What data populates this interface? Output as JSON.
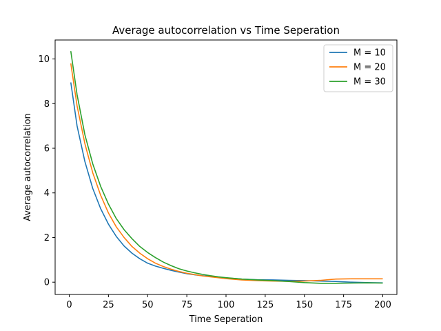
{
  "chart_data": {
    "type": "line",
    "title": "Average autocorrelation vs Time Seperation",
    "xlabel": "Time Seperation",
    "ylabel": "Average autocorrelation",
    "xlim": [
      -9,
      209
    ],
    "ylim": [
      -0.55,
      10.85
    ],
    "xticks": [
      0,
      25,
      50,
      75,
      100,
      125,
      150,
      175,
      200
    ],
    "yticks": [
      0,
      2,
      4,
      6,
      8,
      10
    ],
    "grid": false,
    "legend_position": "top-right",
    "series": [
      {
        "name": "M = 10",
        "color": "#1f77b4",
        "x": [
          1,
          5,
          10,
          15,
          20,
          25,
          30,
          35,
          40,
          45,
          50,
          55,
          60,
          65,
          70,
          75,
          80,
          85,
          90,
          95,
          100,
          110,
          120,
          130,
          140,
          150,
          160,
          170,
          180,
          190,
          200
        ],
        "y": [
          8.95,
          7.0,
          5.4,
          4.2,
          3.3,
          2.6,
          2.05,
          1.62,
          1.3,
          1.05,
          0.85,
          0.72,
          0.62,
          0.53,
          0.45,
          0.38,
          0.33,
          0.29,
          0.26,
          0.22,
          0.19,
          0.14,
          0.11,
          0.1,
          0.08,
          0.07,
          0.05,
          0.03,
          0.0,
          -0.02,
          -0.03
        ]
      },
      {
        "name": "M = 20",
        "color": "#ff7f0e",
        "x": [
          1,
          5,
          10,
          15,
          20,
          25,
          30,
          35,
          40,
          45,
          50,
          55,
          60,
          65,
          70,
          75,
          80,
          85,
          90,
          95,
          100,
          110,
          120,
          130,
          140,
          150,
          160,
          170,
          180,
          190,
          200
        ],
        "y": [
          9.8,
          7.9,
          6.2,
          4.9,
          3.9,
          3.1,
          2.48,
          2.0,
          1.6,
          1.3,
          1.05,
          0.85,
          0.7,
          0.58,
          0.48,
          0.4,
          0.34,
          0.28,
          0.24,
          0.2,
          0.16,
          0.1,
          0.07,
          0.05,
          0.04,
          0.05,
          0.08,
          0.14,
          0.15,
          0.15,
          0.15
        ]
      },
      {
        "name": "M = 30",
        "color": "#2ca02c",
        "x": [
          1,
          5,
          10,
          15,
          20,
          25,
          30,
          35,
          40,
          45,
          50,
          55,
          60,
          65,
          70,
          75,
          80,
          85,
          90,
          95,
          100,
          110,
          120,
          130,
          140,
          150,
          160,
          170,
          180,
          190,
          200
        ],
        "y": [
          10.35,
          8.4,
          6.6,
          5.3,
          4.3,
          3.5,
          2.85,
          2.35,
          1.95,
          1.6,
          1.33,
          1.1,
          0.9,
          0.74,
          0.6,
          0.5,
          0.42,
          0.35,
          0.29,
          0.24,
          0.2,
          0.14,
          0.1,
          0.07,
          0.03,
          -0.02,
          -0.05,
          -0.05,
          -0.04,
          -0.03,
          -0.04
        ]
      }
    ]
  }
}
